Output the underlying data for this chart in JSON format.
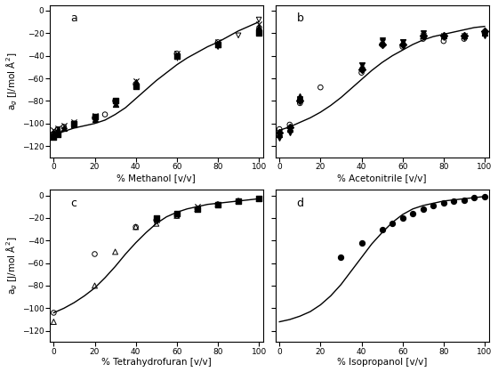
{
  "panels": [
    "a",
    "b",
    "c",
    "d"
  ],
  "xlabels": [
    "% Methanol [v/v]",
    "% Acetonitrile [v/v]",
    "% Tetrahydrofuran [v/v]",
    "% Isopropanol [v/v]"
  ],
  "ylim": [
    -130,
    5
  ],
  "yticks": [
    0,
    -20,
    -40,
    -60,
    -80,
    -100,
    -120
  ],
  "xticks": [
    0,
    20,
    40,
    60,
    80,
    100
  ],
  "panel_a": {
    "curve_x": [
      0,
      2,
      5,
      10,
      15,
      20,
      25,
      30,
      35,
      40,
      45,
      50,
      55,
      60,
      65,
      70,
      75,
      80,
      85,
      90,
      95,
      100
    ],
    "curve_y": [
      -110,
      -109,
      -107,
      -104,
      -102,
      -100,
      -97,
      -92,
      -86,
      -78,
      -70,
      -62,
      -55,
      -48,
      -42,
      -37,
      -32,
      -28,
      -23,
      -18,
      -14,
      -10
    ],
    "series": [
      {
        "x": [
          0,
          2,
          5,
          10,
          20,
          25,
          30,
          40,
          60,
          80,
          100
        ],
        "y": [
          -109,
          -105,
          -103,
          -100,
          -95,
          -92,
          -80,
          -65,
          -38,
          -28,
          -17
        ],
        "marker": "o",
        "filled": false,
        "ms": 16
      },
      {
        "x": [
          0,
          2,
          10,
          20,
          30,
          40,
          60,
          80,
          100
        ],
        "y": [
          -112,
          -110,
          -100,
          -94,
          -80,
          -67,
          -40,
          -30,
          -20
        ],
        "marker": "s",
        "filled": true,
        "ms": 16
      },
      {
        "x": [
          0,
          2,
          5,
          10,
          20,
          30,
          40,
          60,
          80,
          100
        ],
        "y": [
          -108,
          -106,
          -104,
          -101,
          -96,
          -83,
          -63,
          -40,
          -30,
          -15
        ],
        "marker": "^",
        "filled": true,
        "ms": 18
      },
      {
        "x": [
          0,
          2,
          5,
          10,
          20,
          30,
          40,
          60,
          80,
          100
        ],
        "y": [
          -106,
          -104,
          -102,
          -99,
          -93,
          -80,
          -62,
          -38,
          -28,
          -12
        ],
        "marker": "x",
        "filled": false,
        "ms": 20
      },
      {
        "x": [
          0,
          5,
          10,
          20,
          30,
          40,
          60,
          80,
          100
        ],
        "y": [
          -107,
          -104,
          -100,
          -95,
          -81,
          -65,
          -42,
          -32,
          -15
        ],
        "marker": "+",
        "filled": false,
        "ms": 20
      },
      {
        "x": [
          80,
          90,
          100
        ],
        "y": [
          -32,
          -22,
          -8
        ],
        "marker": "v",
        "filled": false,
        "ms": 16
      }
    ]
  },
  "panel_b": {
    "curve_x": [
      0,
      5,
      10,
      15,
      20,
      25,
      30,
      35,
      40,
      45,
      50,
      55,
      60,
      65,
      70,
      75,
      80,
      85,
      90,
      95,
      100
    ],
    "curve_y": [
      -106,
      -103,
      -99,
      -95,
      -90,
      -84,
      -77,
      -69,
      -61,
      -53,
      -46,
      -40,
      -35,
      -30,
      -26,
      -23,
      -21,
      -19,
      -17,
      -15,
      -14
    ],
    "series": [
      {
        "x": [
          0,
          5,
          10,
          20,
          40,
          50,
          60,
          70,
          80,
          90,
          100
        ],
        "y": [
          -105,
          -101,
          -82,
          -68,
          -55,
          -30,
          -32,
          -25,
          -27,
          -25,
          -20
        ],
        "marker": "o",
        "filled": false,
        "ms": 16
      },
      {
        "x": [
          0,
          5,
          10,
          40,
          50,
          60,
          70,
          80,
          90,
          100
        ],
        "y": [
          -110,
          -105,
          -76,
          -50,
          -28,
          -28,
          -22,
          -22,
          -22,
          -20
        ],
        "marker": "^",
        "filled": true,
        "ms": 18
      },
      {
        "x": [
          0,
          5,
          10,
          40,
          50,
          60,
          70,
          80,
          90,
          100
        ],
        "y": [
          -113,
          -108,
          -78,
          -48,
          -26,
          -28,
          -20,
          -24,
          -24,
          -22
        ],
        "marker": "v",
        "filled": true,
        "ms": 16
      },
      {
        "x": [
          0,
          5,
          10,
          40,
          50,
          60,
          70,
          80,
          90,
          100
        ],
        "y": [
          -108,
          -103,
          -80,
          -52,
          -30,
          -30,
          -22,
          -22,
          -22,
          -18
        ],
        "marker": "D",
        "filled": true,
        "ms": 16
      },
      {
        "x": [
          0,
          5,
          10,
          40,
          50,
          60,
          70,
          80,
          90,
          100
        ],
        "y": [
          -108,
          -104,
          -79,
          -48,
          -28,
          -28,
          -22,
          -22,
          -22,
          -20
        ],
        "marker": "x",
        "filled": false,
        "ms": 20
      }
    ]
  },
  "panel_c": {
    "curve_x": [
      0,
      5,
      10,
      15,
      20,
      25,
      30,
      35,
      40,
      45,
      50,
      55,
      60,
      65,
      70,
      75,
      80,
      85,
      90,
      95,
      100
    ],
    "curve_y": [
      -104,
      -100,
      -95,
      -89,
      -82,
      -73,
      -63,
      -52,
      -42,
      -33,
      -25,
      -19,
      -15,
      -12,
      -10,
      -8,
      -7,
      -6,
      -5,
      -4,
      -3
    ],
    "series": [
      {
        "x": [
          0,
          20,
          30,
          40,
          50,
          60,
          70,
          80,
          90,
          100
        ],
        "y": [
          -112,
          -80,
          -50,
          -28,
          -25,
          -18,
          -12,
          -8,
          -5,
          -3
        ],
        "marker": "^",
        "filled": false,
        "ms": 18
      },
      {
        "x": [
          0,
          20,
          40,
          50,
          60,
          70,
          80,
          90,
          100
        ],
        "y": [
          -104,
          -52,
          -28,
          -22,
          -18,
          -12,
          -8,
          -5,
          -3
        ],
        "marker": "o",
        "filled": false,
        "ms": 16
      },
      {
        "x": [
          50,
          60,
          70,
          80,
          90,
          100
        ],
        "y": [
          -20,
          -16,
          -12,
          -8,
          -5,
          -3
        ],
        "marker": "s",
        "filled": true,
        "ms": 16
      },
      {
        "x": [
          50,
          60,
          70,
          80,
          90,
          100
        ],
        "y": [
          -22,
          -16,
          -10,
          -8,
          -5,
          -3
        ],
        "marker": "x",
        "filled": false,
        "ms": 20
      },
      {
        "x": [
          50,
          60,
          70,
          80,
          90,
          100
        ],
        "y": [
          -20,
          -16,
          -12,
          -8,
          -5,
          -3
        ],
        "marker": "+",
        "filled": false,
        "ms": 20
      }
    ]
  },
  "panel_d": {
    "curve_x": [
      0,
      5,
      10,
      15,
      20,
      25,
      30,
      35,
      40,
      45,
      50,
      55,
      60,
      65,
      70,
      75,
      80,
      85,
      90,
      95,
      100
    ],
    "curve_y": [
      -112,
      -110,
      -107,
      -103,
      -97,
      -89,
      -79,
      -67,
      -55,
      -43,
      -33,
      -24,
      -17,
      -12,
      -9,
      -7,
      -5,
      -4,
      -3,
      -2,
      -1
    ],
    "series": [
      {
        "x": [
          30,
          40,
          50,
          55,
          60,
          65,
          70,
          75,
          80,
          85,
          90,
          95,
          100
        ],
        "y": [
          -55,
          -42,
          -30,
          -25,
          -20,
          -16,
          -12,
          -9,
          -7,
          -5,
          -4,
          -2,
          -1
        ],
        "marker": "o",
        "filled": true,
        "ms": 18
      }
    ]
  },
  "ylabel": "a$_g$ [J/mol Å$^2$]",
  "line_color": "black",
  "line_width": 1.0
}
